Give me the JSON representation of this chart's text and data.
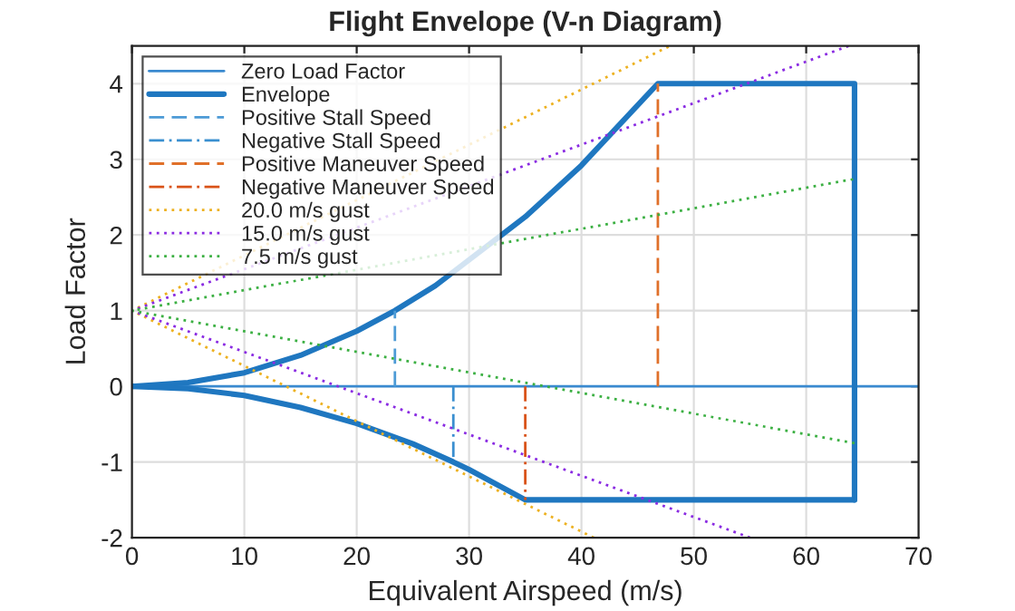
{
  "chart_data": {
    "type": "line",
    "title": "Flight Envelope (V-n Diagram)",
    "xlabel": "Equivalent Airspeed (m/s)",
    "ylabel": "Load Factor",
    "xlim": [
      0,
      70
    ],
    "ylim": [
      -2,
      4.5
    ],
    "xticks": [
      0,
      10,
      20,
      30,
      40,
      50,
      60,
      70
    ],
    "yticks": [
      -2,
      -1,
      0,
      1,
      2,
      3,
      4
    ],
    "grid": true,
    "legend": "top left",
    "marker": "none",
    "series": [
      {
        "name": "Zero Load Factor",
        "color": "#3a8ad0",
        "line_style": "solid",
        "x": [
          0,
          70
        ],
        "values": [
          0,
          0
        ]
      },
      {
        "name": "Envelope",
        "color": "#1f77c0",
        "line_style": "solid",
        "x": [
          0,
          5,
          10,
          15,
          20,
          23.4,
          27,
          35,
          40,
          46.8,
          64.3,
          64.3
        ],
        "values": [
          0,
          0.05,
          0.18,
          0.41,
          0.73,
          1,
          1.33,
          2.24,
          2.92,
          4,
          4,
          -1.5
        ]
      },
      {
        "color": "#1f77c0",
        "line_style": "solid",
        "x": [
          0,
          5,
          10,
          15,
          20,
          25,
          28.6,
          30,
          35,
          64.3
        ],
        "values": [
          0,
          -0.03,
          -0.12,
          -0.28,
          -0.49,
          -0.76,
          -1,
          -1.1,
          -1.5,
          -1.5
        ]
      },
      {
        "name": "Positive Stall Speed",
        "color": "#4d9bd6",
        "line_style": "dashed",
        "x": [
          23.4,
          23.4
        ],
        "values": [
          0,
          1
        ]
      },
      {
        "name": "Negative Stall Speed",
        "color": "#3a8fd0",
        "line_style": "dashdot",
        "x": [
          28.6,
          28.6
        ],
        "values": [
          0,
          -1
        ]
      },
      {
        "name": "Positive Maneuver Speed",
        "color": "#e0702a",
        "line_style": "dashed",
        "x": [
          46.8,
          46.8
        ],
        "values": [
          0,
          4
        ]
      },
      {
        "name": "Negative Maneuver Speed",
        "color": "#d95319",
        "line_style": "dashdot",
        "x": [
          35,
          35
        ],
        "values": [
          0,
          -1.5
        ]
      },
      {
        "name": "20.0 m/s gust",
        "color": "#edb120",
        "line_style": "dotted",
        "x": [
          41.1,
          0,
          47.9
        ],
        "values": [
          -2,
          1,
          4.5
        ]
      },
      {
        "name": "15.0 m/s gust",
        "color": "#8a2be2",
        "line_style": "dotted",
        "x": [
          55,
          0,
          63.8
        ],
        "values": [
          -2,
          1,
          4.5
        ]
      },
      {
        "name": "7.5 m/s gust",
        "color": "#3cb043",
        "line_style": "dotted",
        "x": [
          64.3,
          0,
          64.3
        ],
        "values": [
          -0.75,
          1,
          2.74
        ]
      }
    ]
  }
}
